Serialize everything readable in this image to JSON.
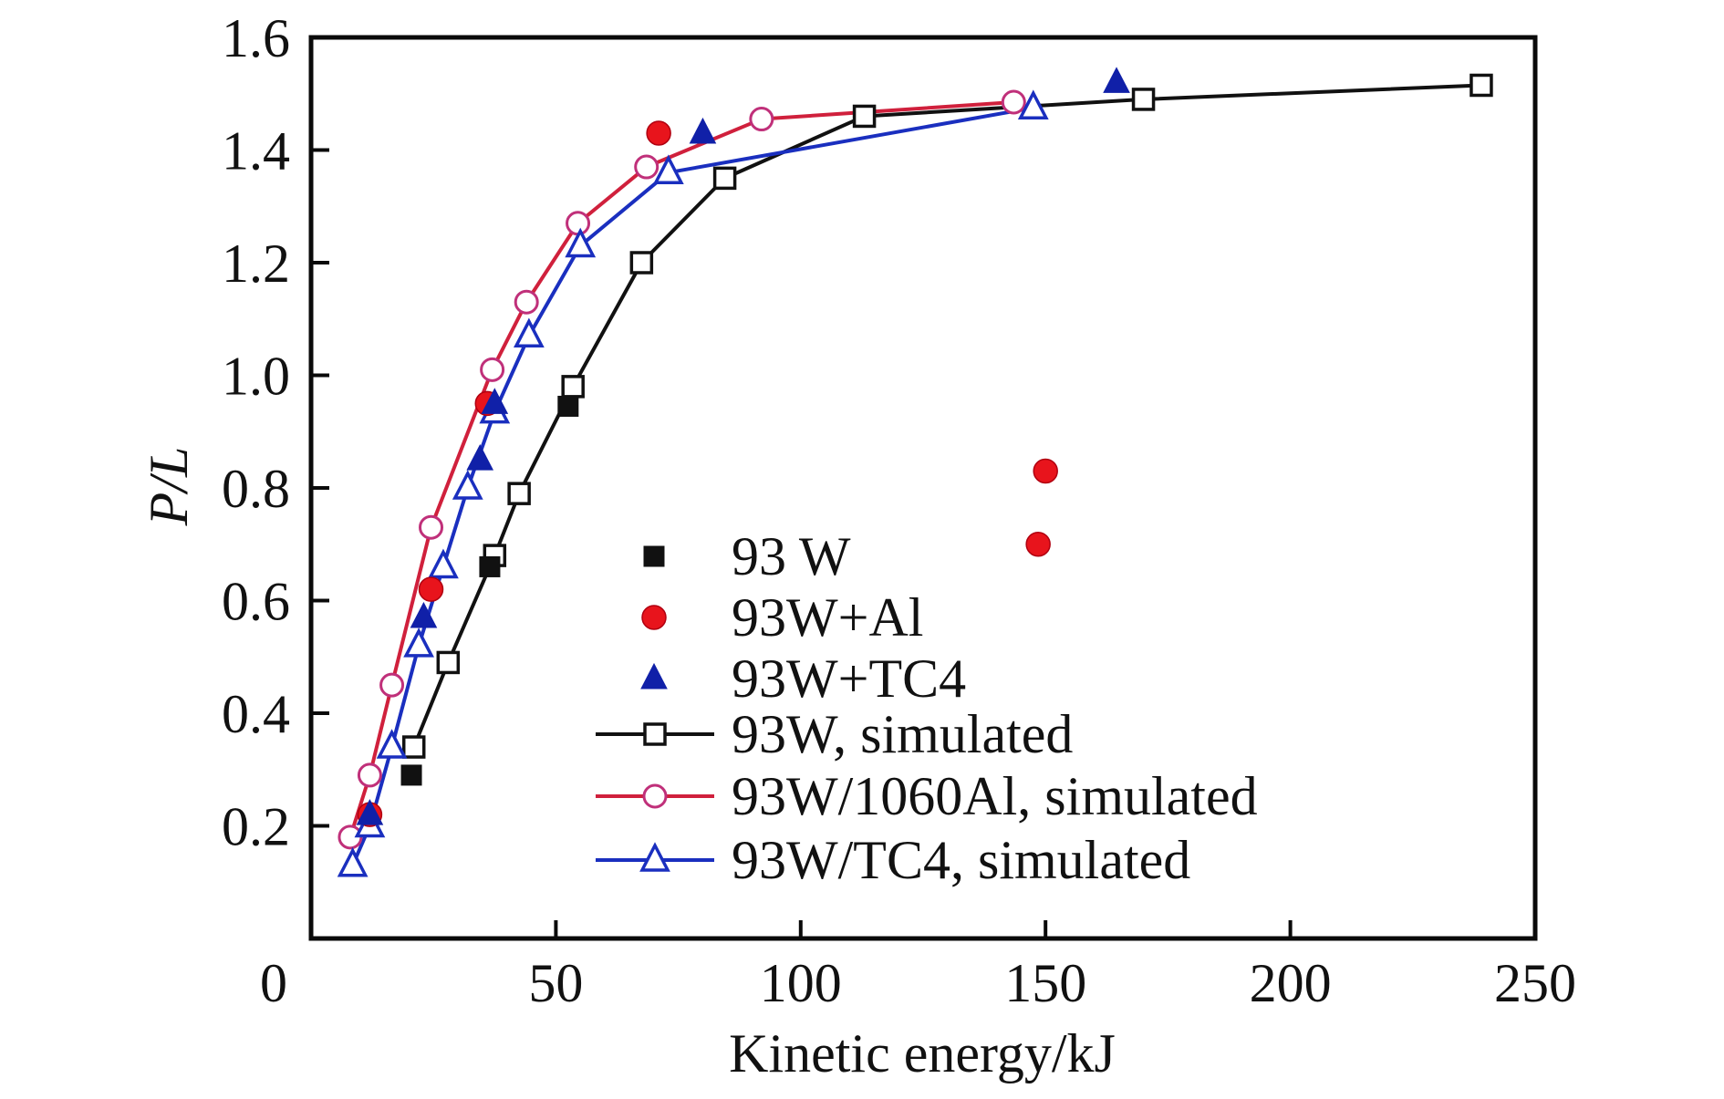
{
  "chart_data": {
    "type": "scatter",
    "title": "",
    "xlabel": "Kinetic energy/kJ",
    "ylabel": "P/L",
    "xlim": [
      0,
      250
    ],
    "ylim": [
      0,
      1.6
    ],
    "x_ticks": [
      0,
      50,
      100,
      150,
      200,
      250
    ],
    "x_tick_labels": [
      "0",
      "50",
      "100",
      "150",
      "200",
      "250"
    ],
    "y_ticks": [
      0.2,
      0.4,
      0.6,
      0.8,
      1.0,
      1.2,
      1.4,
      1.6
    ],
    "y_tick_labels": [
      "0.2",
      "0.4",
      "0.6",
      "0.8",
      "1.0",
      "1.2",
      "1.4",
      "1.6"
    ],
    "grid": false,
    "legend_position": "center-bottom",
    "series": [
      {
        "name": "93 W",
        "kind": "marker",
        "marker": "filled-square",
        "color": "#111111",
        "points": [
          [
            20.5,
            0.29
          ],
          [
            36.5,
            0.66
          ],
          [
            52.5,
            0.945
          ]
        ]
      },
      {
        "name": "93W+Al",
        "kind": "marker",
        "marker": "filled-circle",
        "color": "#e8141c",
        "points": [
          [
            12,
            0.22
          ],
          [
            24.5,
            0.62
          ],
          [
            36,
            0.95
          ],
          [
            71,
            1.43
          ],
          [
            148.5,
            0.7
          ],
          [
            150,
            0.83
          ]
        ]
      },
      {
        "name": "93W+TC4",
        "kind": "marker",
        "marker": "filled-triangle",
        "color": "#1020a8",
        "points": [
          [
            12,
            0.22
          ],
          [
            23,
            0.57
          ],
          [
            34.5,
            0.85
          ],
          [
            37.5,
            0.95
          ],
          [
            80,
            1.43
          ],
          [
            164.5,
            1.52
          ]
        ]
      },
      {
        "name": "93W, simulated",
        "kind": "line",
        "marker": "open-square",
        "color": "#111111",
        "points": [
          [
            21,
            0.34
          ],
          [
            28,
            0.49
          ],
          [
            37.5,
            0.68
          ],
          [
            42.5,
            0.79
          ],
          [
            53.5,
            0.98
          ],
          [
            67.5,
            1.2
          ],
          [
            84.5,
            1.35
          ],
          [
            113,
            1.46
          ],
          [
            170,
            1.49
          ],
          [
            239,
            1.515
          ]
        ]
      },
      {
        "name": "93W/1060Al, simulated",
        "kind": "line",
        "marker": "open-circle",
        "color": "#d0203c",
        "marker_color": "#c0307a",
        "points": [
          [
            8,
            0.18
          ],
          [
            12,
            0.29
          ],
          [
            16.5,
            0.45
          ],
          [
            24.5,
            0.73
          ],
          [
            37,
            1.01
          ],
          [
            44,
            1.13
          ],
          [
            54.5,
            1.27
          ],
          [
            68.5,
            1.37
          ],
          [
            92,
            1.455
          ],
          [
            143.5,
            1.485
          ]
        ]
      },
      {
        "name": "93W/TC4, simulated",
        "kind": "line",
        "marker": "open-triangle",
        "color": "#1a2fbf",
        "points": [
          [
            8.5,
            0.13
          ],
          [
            12,
            0.2
          ],
          [
            16.5,
            0.34
          ],
          [
            22,
            0.52
          ],
          [
            27,
            0.66
          ],
          [
            32,
            0.8
          ],
          [
            37.5,
            0.935
          ],
          [
            44.5,
            1.07
          ],
          [
            55,
            1.23
          ],
          [
            73,
            1.36
          ],
          [
            147.5,
            1.475
          ]
        ]
      }
    ]
  }
}
